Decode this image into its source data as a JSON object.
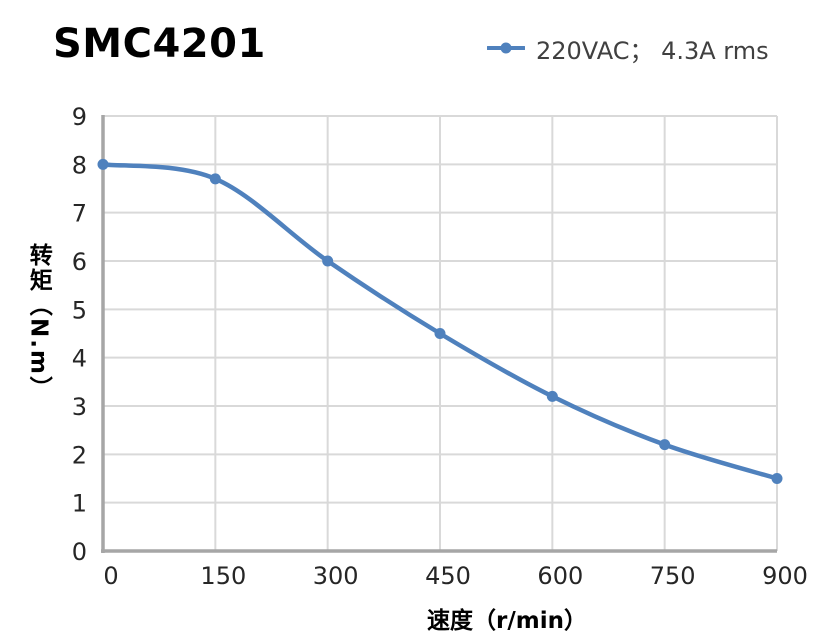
{
  "page": {
    "title": "SMC4201"
  },
  "legend": {
    "label": "220VAC； 4.3A rms"
  },
  "chart_data": {
    "type": "line",
    "title": "SMC4201",
    "xlabel": "速度（r/min）",
    "ylabel": "转矩（N.m）",
    "x_ticks": [
      0,
      150,
      300,
      450,
      600,
      750,
      900
    ],
    "y_ticks": [
      0,
      1,
      2,
      3,
      4,
      5,
      6,
      7,
      8,
      9
    ],
    "xlim": [
      0,
      900
    ],
    "ylim": [
      0,
      9
    ],
    "grid": true,
    "smooth": true,
    "legend_position": "top-right",
    "series": [
      {
        "name": "220VAC； 4.3A rms",
        "color": "#4F81BD",
        "x": [
          0,
          150,
          300,
          450,
          600,
          750,
          900
        ],
        "y": [
          8.0,
          7.7,
          6.0,
          4.5,
          3.2,
          2.2,
          1.5
        ]
      }
    ]
  },
  "colors": {
    "series_blue": "#4F81BD",
    "gridline": "#D9D9D9",
    "axis_line": "#A6A6A6",
    "tick_text": "#262626",
    "title_text": "#000000",
    "legend_text": "#404040"
  }
}
